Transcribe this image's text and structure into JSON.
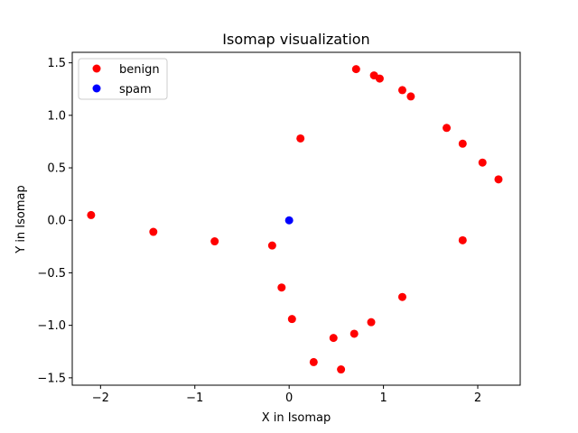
{
  "chart_data": {
    "type": "scatter",
    "title": "Isomap visualization",
    "xlabel": "X in Isomap",
    "ylabel": "Y in Isomap",
    "xlim": [
      -2.3,
      2.45
    ],
    "ylim": [
      -1.57,
      1.6
    ],
    "xticks": [
      -2,
      -1,
      0,
      1,
      2
    ],
    "xtick_labels": [
      "−2",
      "−1",
      "0",
      "1",
      "2"
    ],
    "yticks": [
      -1.5,
      -1.0,
      -0.5,
      0.0,
      0.5,
      1.0,
      1.5
    ],
    "ytick_labels": [
      "−1.5",
      "−1.0",
      "−0.5",
      "0.0",
      "0.5",
      "1.0",
      "1.5"
    ],
    "grid": false,
    "legend_position": "upper-left",
    "series": [
      {
        "name": "benign",
        "color": "#ff0000",
        "points": [
          [
            -2.1,
            0.05
          ],
          [
            -1.44,
            -0.11
          ],
          [
            -0.79,
            -0.2
          ],
          [
            -0.18,
            -0.24
          ],
          [
            -0.08,
            -0.64
          ],
          [
            0.03,
            -0.94
          ],
          [
            0.12,
            0.78
          ],
          [
            0.26,
            -1.35
          ],
          [
            0.47,
            -1.12
          ],
          [
            0.55,
            -1.42
          ],
          [
            0.69,
            -1.08
          ],
          [
            0.71,
            1.44
          ],
          [
            0.87,
            -0.97
          ],
          [
            0.9,
            1.38
          ],
          [
            0.96,
            1.35
          ],
          [
            1.2,
            1.24
          ],
          [
            1.29,
            1.18
          ],
          [
            1.2,
            -0.73
          ],
          [
            1.67,
            0.88
          ],
          [
            1.84,
            0.73
          ],
          [
            1.84,
            -0.19
          ],
          [
            2.05,
            0.55
          ],
          [
            2.22,
            0.39
          ]
        ]
      },
      {
        "name": "spam",
        "color": "#0000ff",
        "points": [
          [
            0.0,
            0.0
          ]
        ]
      }
    ]
  }
}
